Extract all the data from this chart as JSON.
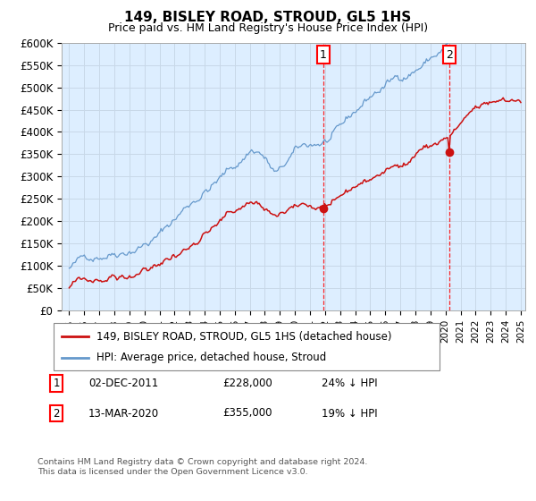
{
  "title": "149, BISLEY ROAD, STROUD, GL5 1HS",
  "subtitle": "Price paid vs. HM Land Registry's House Price Index (HPI)",
  "background_color": "#ffffff",
  "plot_bg_color": "#ddeeff",
  "grid_color": "#c8d8e8",
  "hpi_color": "#6699cc",
  "price_color": "#cc1111",
  "ylim": [
    0,
    600000
  ],
  "yticks": [
    0,
    50000,
    100000,
    150000,
    200000,
    250000,
    300000,
    350000,
    400000,
    450000,
    500000,
    550000,
    600000
  ],
  "xmin": 1995,
  "xmax": 2025,
  "transaction1_year": 2011.92,
  "transaction1_price": 228000,
  "transaction2_year": 2020.21,
  "transaction2_price": 355000,
  "legend_line1": "149, BISLEY ROAD, STROUD, GL5 1HS (detached house)",
  "legend_line2": "HPI: Average price, detached house, Stroud",
  "note1_label": "1",
  "note1_date": "02-DEC-2011",
  "note1_price": "£228,000",
  "note1_hpi": "24% ↓ HPI",
  "note2_label": "2",
  "note2_date": "13-MAR-2020",
  "note2_price": "£355,000",
  "note2_hpi": "19% ↓ HPI",
  "footer": "Contains HM Land Registry data © Crown copyright and database right 2024.\nThis data is licensed under the Open Government Licence v3.0."
}
